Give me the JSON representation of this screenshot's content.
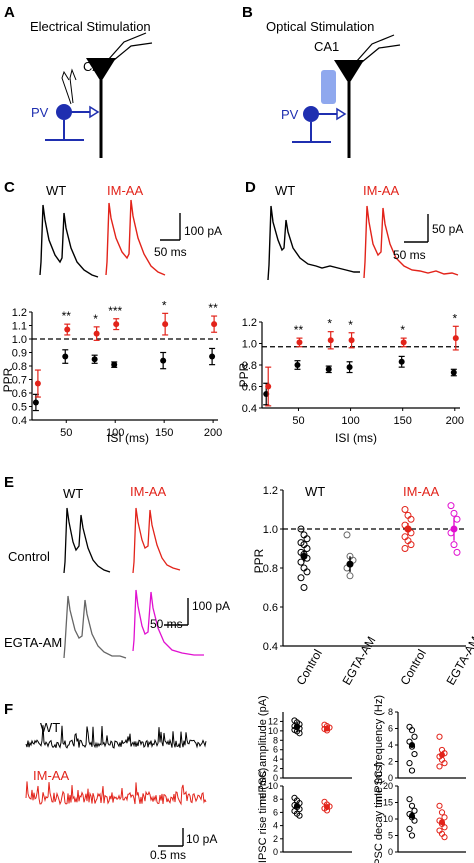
{
  "colors": {
    "wt": "#000000",
    "im": "#e2231a",
    "ega": "#666666",
    "egaim": "#e010d0",
    "pv": "#1f2fb0",
    "light": "#8fa8ee"
  },
  "panel_a": {
    "letter": "A",
    "title": "Electrical Stimulation",
    "ca1": "CA1",
    "pv": "PV"
  },
  "panel_b": {
    "letter": "B",
    "title": "Optical Stimulation",
    "ca1": "CA1",
    "pv": "PV"
  },
  "panel_c": {
    "letter": "C",
    "wt": "WT",
    "im": "IM-AA",
    "scale_y": "100 pA",
    "scale_x": "50 ms",
    "ylabel": "PPR",
    "xlabel": "ISI (ms)",
    "stars": [
      "**",
      "*",
      "***",
      "*",
      "**"
    ]
  },
  "panel_d": {
    "letter": "D",
    "wt": "WT",
    "im": "IM-AA",
    "scale_y": "50 pA",
    "scale_x": "50 ms",
    "ylabel": "PPR",
    "xlabel": "ISI (ms)",
    "stars": [
      "**",
      "*",
      "*",
      "*",
      "*"
    ]
  },
  "panel_e": {
    "letter": "E",
    "wt": "WT",
    "im": "IM-AA",
    "control": "Control",
    "egta": "EGTA-AM",
    "scale_y": "100 pA",
    "scale_x": "50 ms",
    "ylabel": "PPR",
    "wt_group": "WT",
    "im_group": "IM-AA"
  },
  "panel_f": {
    "letter": "F",
    "wt": "WT",
    "im": "IM-AA",
    "scale_y": "10 pA",
    "scale_x": "0.5 ms",
    "plots": [
      "mIPSC amplitude (pA)",
      "mIPSC frequency (Hz)",
      "mIPSC rise time (ms)",
      "mIPSC decay time (ms)"
    ]
  },
  "chart_data": [
    {
      "type": "scatter",
      "panel": "C",
      "x": [
        20,
        50,
        80,
        100,
        150,
        200
      ],
      "xticks": [
        "50",
        "100",
        "150",
        "200"
      ],
      "yticks": [
        "0.4",
        "0.5",
        "0.6",
        "0.7",
        "0.8",
        "0.9",
        "1.0",
        "1.1",
        "1.2"
      ],
      "ylim": [
        0.4,
        1.2
      ],
      "xlim": [
        15,
        205
      ],
      "reference_line": 1.0,
      "series": [
        {
          "name": "WT",
          "values": [
            0.53,
            0.87,
            0.85,
            0.81,
            0.84,
            0.87
          ],
          "err": [
            0.06,
            0.05,
            0.03,
            0.02,
            0.06,
            0.06
          ]
        },
        {
          "name": "IM-AA",
          "values": [
            0.67,
            1.07,
            1.04,
            1.11,
            1.11,
            1.11
          ],
          "err": [
            0.1,
            0.04,
            0.05,
            0.04,
            0.08,
            0.06
          ]
        }
      ]
    },
    {
      "type": "scatter",
      "panel": "D",
      "x": [
        20,
        50,
        80,
        100,
        150,
        200
      ],
      "xticks": [
        "50",
        "100",
        "150",
        "200"
      ],
      "yticks": [
        "0.4",
        "0.6",
        "0.8",
        "1.0",
        "1.2"
      ],
      "ylim": [
        0.4,
        1.2
      ],
      "xlim": [
        15,
        205
      ],
      "reference_line": 0.97,
      "series": [
        {
          "name": "WT",
          "values": [
            0.53,
            0.8,
            0.76,
            0.78,
            0.83,
            0.73
          ],
          "err": [
            0.1,
            0.04,
            0.03,
            0.05,
            0.05,
            0.03
          ]
        },
        {
          "name": "IM-AA",
          "values": [
            0.6,
            1.01,
            1.03,
            1.03,
            1.01,
            1.05
          ],
          "err": [
            0.18,
            0.04,
            0.08,
            0.07,
            0.04,
            0.11
          ]
        }
      ]
    },
    {
      "type": "scatter",
      "panel": "E",
      "categories": [
        "Control",
        "EGTA-AM",
        "Control",
        "EGTA-AM"
      ],
      "yticks": [
        "0.4",
        "0.6",
        "0.8",
        "1.0",
        "1.2"
      ],
      "ylim": [
        0.4,
        1.2
      ],
      "reference_line": 1.0,
      "series": [
        {
          "name": "WT Control",
          "mean": 0.86,
          "err": 0.03,
          "points": [
            1.0,
            0.97,
            0.95,
            0.93,
            0.92,
            0.9,
            0.88,
            0.87,
            0.85,
            0.83,
            0.8,
            0.78,
            0.75,
            0.7
          ]
        },
        {
          "name": "WT EGTA-AM",
          "mean": 0.82,
          "err": 0.04,
          "points": [
            0.97,
            0.86,
            0.84,
            0.8,
            0.76
          ]
        },
        {
          "name": "IM-AA Control",
          "mean": 1.0,
          "err": 0.03,
          "points": [
            1.1,
            1.07,
            1.05,
            1.02,
            1.0,
            0.98,
            0.96,
            0.94,
            0.92,
            0.9
          ]
        },
        {
          "name": "IM-AA EGTA-AM",
          "mean": 1.0,
          "err": 0.06,
          "points": [
            1.12,
            1.08,
            1.05,
            0.98,
            0.92,
            0.88
          ]
        }
      ]
    },
    {
      "type": "scatter",
      "panel": "F-amplitude",
      "ylim": [
        0,
        14
      ],
      "yticks": [
        "0",
        "2",
        "4",
        "6",
        "8",
        "10",
        "12"
      ],
      "series": [
        {
          "name": "WT",
          "mean": 11.0,
          "points": [
            12.2,
            11.8,
            11.4,
            11.0,
            10.8,
            10.5,
            10.2,
            9.9,
            9.5
          ]
        },
        {
          "name": "IM-AA",
          "mean": 10.5,
          "points": [
            11.3,
            11.0,
            10.7,
            10.4,
            10.1
          ]
        }
      ]
    },
    {
      "type": "scatter",
      "panel": "F-frequency",
      "ylim": [
        0,
        8
      ],
      "yticks": [
        "0",
        "2",
        "4",
        "6",
        "8"
      ],
      "series": [
        {
          "name": "WT",
          "mean": 4.0,
          "points": [
            6.2,
            5.8,
            5.0,
            4.4,
            3.8,
            2.9,
            1.8,
            0.9
          ]
        },
        {
          "name": "IM-AA",
          "mean": 2.8,
          "points": [
            5.0,
            3.4,
            3.0,
            2.6,
            2.2,
            1.8,
            1.4
          ]
        }
      ]
    },
    {
      "type": "scatter",
      "panel": "F-rise",
      "ylim": [
        0,
        10
      ],
      "yticks": [
        "0",
        "2",
        "4",
        "6",
        "8",
        "10"
      ],
      "series": [
        {
          "name": "WT",
          "mean": 7.0,
          "points": [
            8.2,
            7.8,
            7.4,
            7.1,
            6.8,
            6.5,
            6.2,
            5.8,
            5.5
          ]
        },
        {
          "name": "IM-AA",
          "mean": 6.8,
          "points": [
            7.6,
            7.2,
            6.9,
            6.6,
            6.3
          ]
        }
      ]
    },
    {
      "type": "scatter",
      "panel": "F-decay",
      "ylim": [
        0,
        20
      ],
      "yticks": [
        "0",
        "5",
        "10",
        "15",
        "20"
      ],
      "series": [
        {
          "name": "WT",
          "mean": 11.0,
          "points": [
            16.0,
            14.0,
            12.5,
            11.5,
            10.5,
            9.5,
            7.0,
            5.0
          ]
        },
        {
          "name": "IM-AA",
          "mean": 9.0,
          "points": [
            14.0,
            12.0,
            10.5,
            9.5,
            8.5,
            7.5,
            6.5,
            5.5,
            4.5
          ]
        }
      ]
    }
  ]
}
